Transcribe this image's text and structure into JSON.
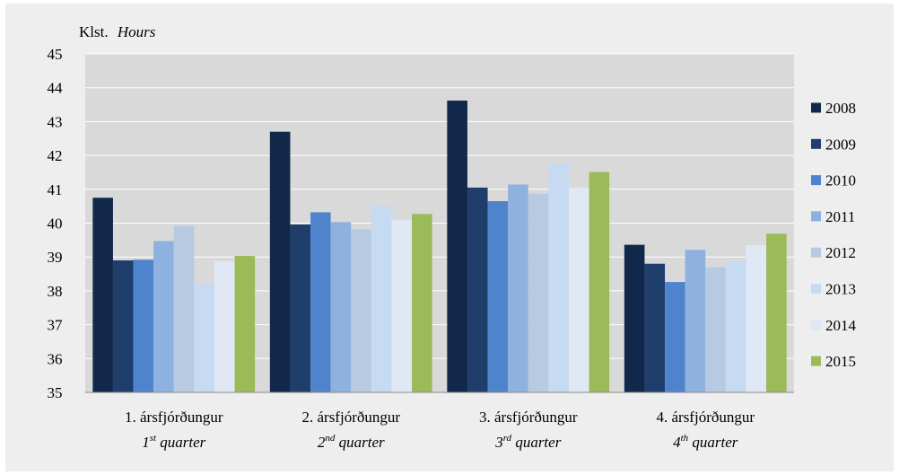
{
  "chart_data": {
    "type": "bar",
    "ylabel_is": "Klst.",
    "ylabel_en": "Hours",
    "ylim": [
      35,
      45
    ],
    "yticks": [
      35,
      36,
      37,
      38,
      39,
      40,
      41,
      42,
      43,
      44,
      45
    ],
    "grid": true,
    "legend_position": "right",
    "categories": [
      {
        "is": "1. ársfjórðungur",
        "en_num": "1",
        "en_sup": "st",
        "en_word": "quarter"
      },
      {
        "is": "2. ársfjórðungur",
        "en_num": "2",
        "en_sup": "nd",
        "en_word": "quarter"
      },
      {
        "is": "3. ársfjórðungur",
        "en_num": "3",
        "en_sup": "rd",
        "en_word": "quarter"
      },
      {
        "is": "4. ársfjórðungur",
        "en_num": "4",
        "en_sup": "th",
        "en_word": "quarter"
      }
    ],
    "series": [
      {
        "name": "2008",
        "color": "#12284a",
        "values": [
          40.75,
          42.7,
          43.62,
          39.36
        ]
      },
      {
        "name": "2009",
        "color": "#1f3e6c",
        "values": [
          38.9,
          39.96,
          41.05,
          38.8
        ]
      },
      {
        "name": "2010",
        "color": "#4f84cc",
        "values": [
          38.92,
          40.32,
          40.65,
          38.26
        ]
      },
      {
        "name": "2011",
        "color": "#8eb1df",
        "values": [
          39.47,
          40.03,
          41.14,
          39.21
        ]
      },
      {
        "name": "2012",
        "color": "#b8cae2",
        "values": [
          39.92,
          39.82,
          40.87,
          38.7
        ]
      },
      {
        "name": "2013",
        "color": "#c6daf1",
        "values": [
          38.2,
          40.51,
          41.77,
          38.88
        ]
      },
      {
        "name": "2014",
        "color": "#dfe8f4",
        "values": [
          38.87,
          40.09,
          41.05,
          39.35
        ]
      },
      {
        "name": "2015",
        "color": "#9bbb59",
        "values": [
          39.03,
          40.27,
          41.51,
          39.69
        ]
      }
    ]
  }
}
